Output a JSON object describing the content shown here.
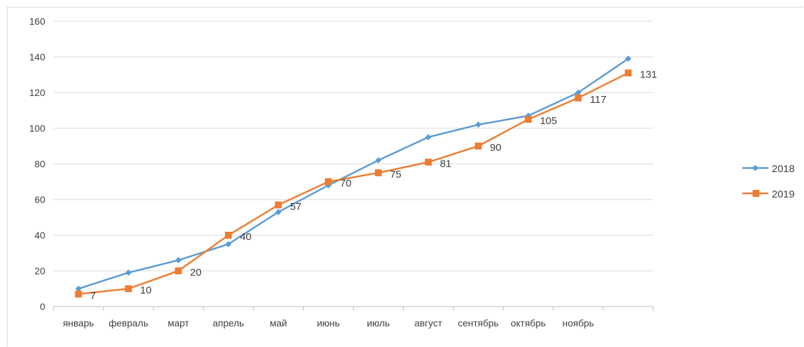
{
  "chart_data": {
    "type": "line",
    "title": "",
    "xlabel": "",
    "ylabel": "",
    "categories": [
      "январь",
      "февраль",
      "март",
      "апрель",
      "май",
      "июнь",
      "июль",
      "август",
      "сентябрь",
      "октябрь",
      "ноябрь",
      ""
    ],
    "ylim": [
      0,
      160
    ],
    "yticks": [
      0,
      20,
      40,
      60,
      80,
      100,
      120,
      140,
      160
    ],
    "grid": true,
    "legend": "right",
    "series": [
      {
        "name": "2018",
        "color": "#5b9bd5",
        "marker": "diamond",
        "values": [
          10,
          19,
          26,
          35,
          53,
          68,
          82,
          95,
          102,
          107,
          120,
          139
        ],
        "data_labels": false
      },
      {
        "name": "2019",
        "color": "#ed7d31",
        "marker": "square",
        "values": [
          7,
          10,
          20,
          40,
          57,
          70,
          75,
          81,
          90,
          105,
          117,
          131
        ],
        "data_labels": true
      }
    ]
  }
}
